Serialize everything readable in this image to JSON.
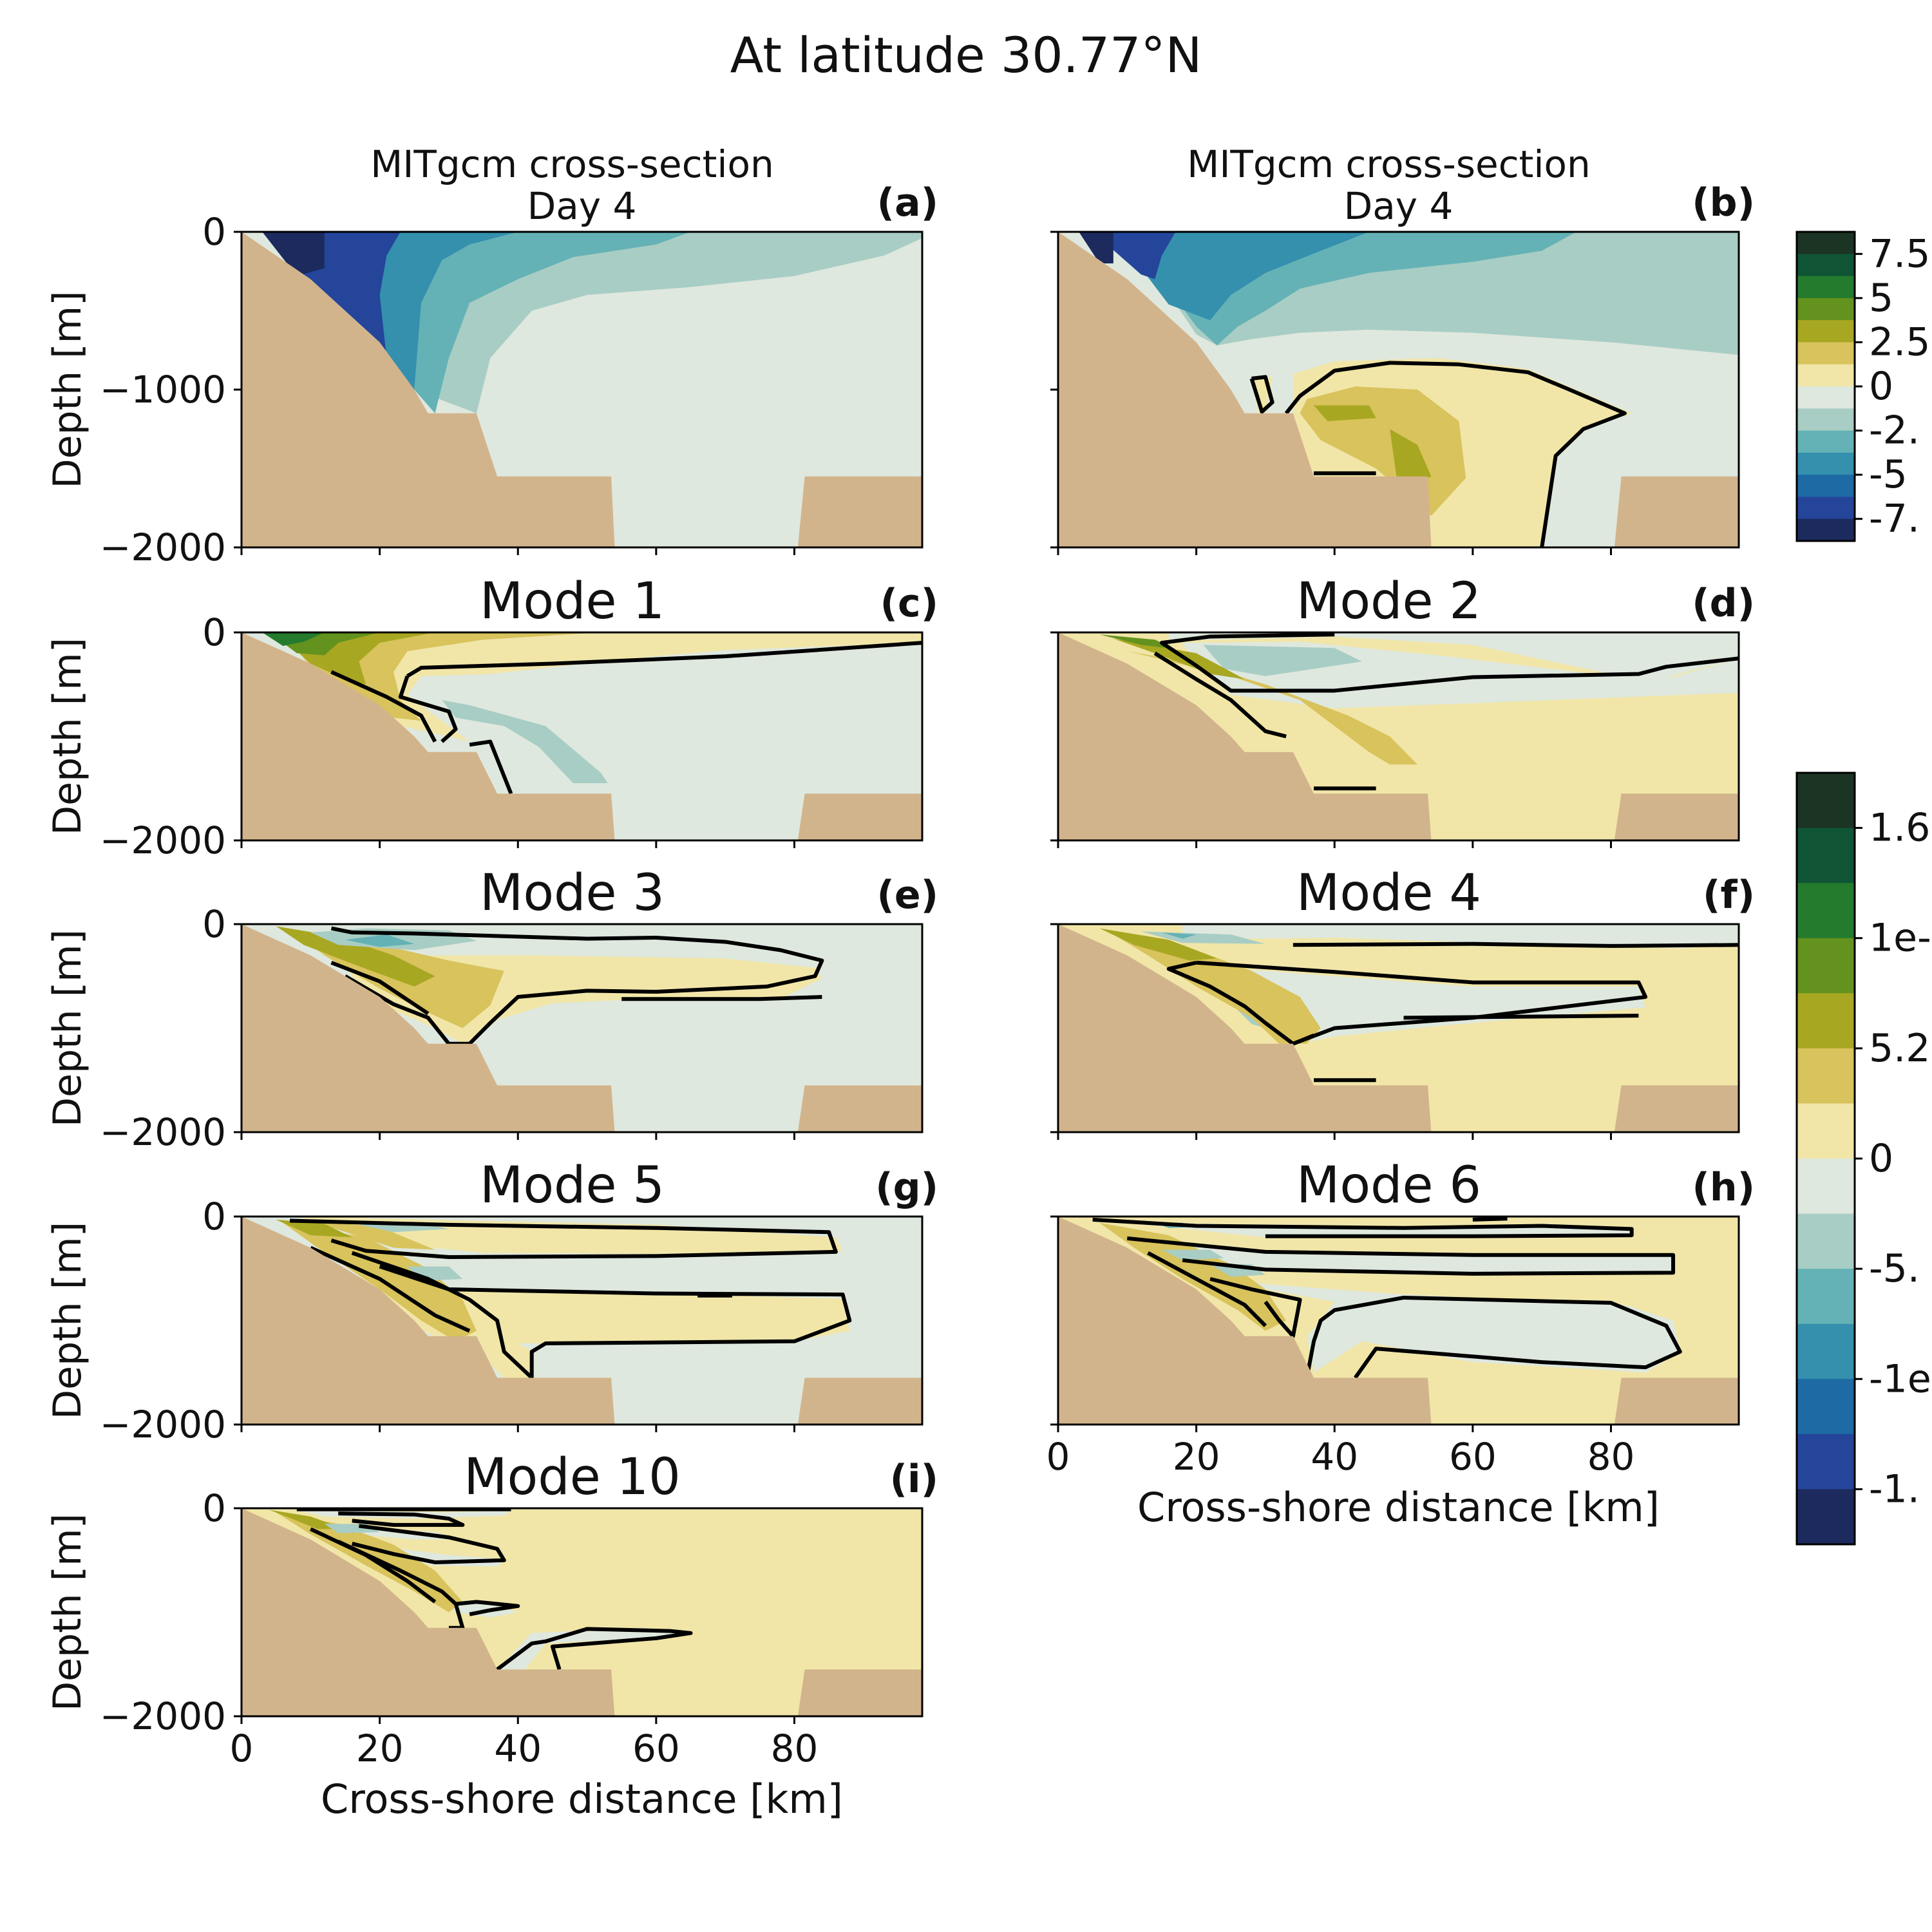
{
  "figure": {
    "suptitle": "At latitude 30.77°N"
  },
  "colors": {
    "land": "#d2b48c",
    "frame": "#000000",
    "contour": "#000000",
    "palette_low_to_high": [
      "#1c2a5e",
      "#24459a",
      "#1d6aa5",
      "#3490ad",
      "#64b2b5",
      "#a8cdc4",
      "#dfe8de",
      "#f1e6a8",
      "#d8c35c",
      "#a8a722",
      "#63921e",
      "#247b2e",
      "#0f5535",
      "#1c3423"
    ]
  },
  "colorbars": [
    {
      "name": "velocity-colorbar",
      "tick_labels": [
        "7.5",
        "5",
        "2.5",
        "0",
        "-2.",
        "-5",
        "-7."
      ]
    },
    {
      "name": "mode-colorbar",
      "tick_labels": [
        "1.6",
        "1e-",
        "5.2",
        "0",
        "-5.",
        "-1e",
        "-1."
      ]
    }
  ],
  "panels": [
    {
      "id": "a",
      "title": "MITgcm cross-section\nDay 4",
      "letter": "(a)",
      "ylabel": "Depth [m]",
      "yticks": [
        "0",
        "−1000",
        "−2000"
      ],
      "xticks": [],
      "xlabel": ""
    },
    {
      "id": "b",
      "title": "MITgcm cross-section\nDay 4",
      "letter": "(b)",
      "ylabel": "",
      "yticks": [],
      "xticks": [],
      "xlabel": ""
    },
    {
      "id": "c",
      "title": "Mode 1",
      "letter": "(c)",
      "ylabel": "Depth [m]",
      "yticks": [
        "0",
        "−2000"
      ],
      "xticks": [],
      "xlabel": ""
    },
    {
      "id": "d",
      "title": "Mode 2",
      "letter": "(d)",
      "ylabel": "",
      "yticks": [],
      "xticks": [],
      "xlabel": ""
    },
    {
      "id": "e",
      "title": "Mode 3",
      "letter": "(e)",
      "ylabel": "Depth [m]",
      "yticks": [
        "0",
        "−2000"
      ],
      "xticks": [],
      "xlabel": ""
    },
    {
      "id": "f",
      "title": "Mode 4",
      "letter": "(f)",
      "ylabel": "",
      "yticks": [],
      "xticks": [],
      "xlabel": ""
    },
    {
      "id": "g",
      "title": "Mode 5",
      "letter": "(g)",
      "ylabel": "Depth [m]",
      "yticks": [
        "0",
        "−2000"
      ],
      "xticks": [],
      "xlabel": ""
    },
    {
      "id": "h",
      "title": "Mode 6",
      "letter": "(h)",
      "ylabel": "",
      "yticks": [],
      "xticks": [
        "0",
        "20",
        "40",
        "60",
        "80"
      ],
      "xlabel": "Cross-shore distance [km]"
    },
    {
      "id": "i",
      "title": "Mode 10",
      "letter": "(i)",
      "ylabel": "Depth [m]",
      "yticks": [
        "0",
        "−2000"
      ],
      "xticks": [
        "0",
        "20",
        "40",
        "60",
        "80"
      ],
      "xlabel": "Cross-shore distance [km]"
    }
  ],
  "chart_data": {
    "type": "heatmap",
    "title": "At latitude 30.77°N",
    "x_range_km": [
      0,
      98.5
    ],
    "y_range_m": [
      -2000,
      0
    ],
    "xlabel": "Cross-shore distance [km]",
    "ylabel": "Depth [m]",
    "xticks": [
      0,
      20,
      40,
      60,
      80
    ],
    "yticks": [
      0,
      -1000,
      -2000
    ],
    "colorbar_1_ticks": [
      "7.5",
      "5",
      "2.5",
      "0",
      "-2.",
      "-5",
      "-7."
    ],
    "colorbar_2_ticks": [
      "1.6",
      "1e-",
      "5.2",
      "0",
      "-5.",
      "-1e",
      "-1."
    ],
    "bathymetry_profile": [
      [
        0,
        0
      ],
      [
        10,
        -300
      ],
      [
        20,
        -700
      ],
      [
        25,
        -1000
      ],
      [
        27,
        -1150
      ],
      [
        34,
        -1150
      ],
      [
        37,
        -1550
      ],
      [
        53.5,
        -1550
      ],
      [
        54,
        -2000
      ],
      [
        80.5,
        -2000
      ],
      [
        81.5,
        -1550
      ],
      [
        98.5,
        -1550
      ]
    ],
    "panels": [
      {
        "panel": "(a)",
        "title": "MITgcm cross-section Day 4",
        "zero_contour": false,
        "dominant_sign": "negative",
        "core_min_level": -7.5
      },
      {
        "panel": "(b)",
        "title": "MITgcm cross-section Day 4",
        "zero_contour": true,
        "dominant_sign": "negative near surface, positive at depth"
      },
      {
        "panel": "(c)",
        "title": "Mode 1",
        "zero_contour": true,
        "dominant_sign": "positive near slope surface"
      },
      {
        "panel": "(d)",
        "title": "Mode 2",
        "zero_contour": true,
        "dominant_sign": "positive at depth"
      },
      {
        "panel": "(e)",
        "title": "Mode 3",
        "zero_contour": true,
        "dominant_sign": "layered"
      },
      {
        "panel": "(f)",
        "title": "Mode 4",
        "zero_contour": true,
        "dominant_sign": "layered"
      },
      {
        "panel": "(g)",
        "title": "Mode 5",
        "zero_contour": true,
        "dominant_sign": "layered"
      },
      {
        "panel": "(h)",
        "title": "Mode 6",
        "zero_contour": true,
        "dominant_sign": "layered"
      },
      {
        "panel": "(i)",
        "title": "Mode 10",
        "zero_contour": true,
        "dominant_sign": "positive"
      }
    ]
  }
}
